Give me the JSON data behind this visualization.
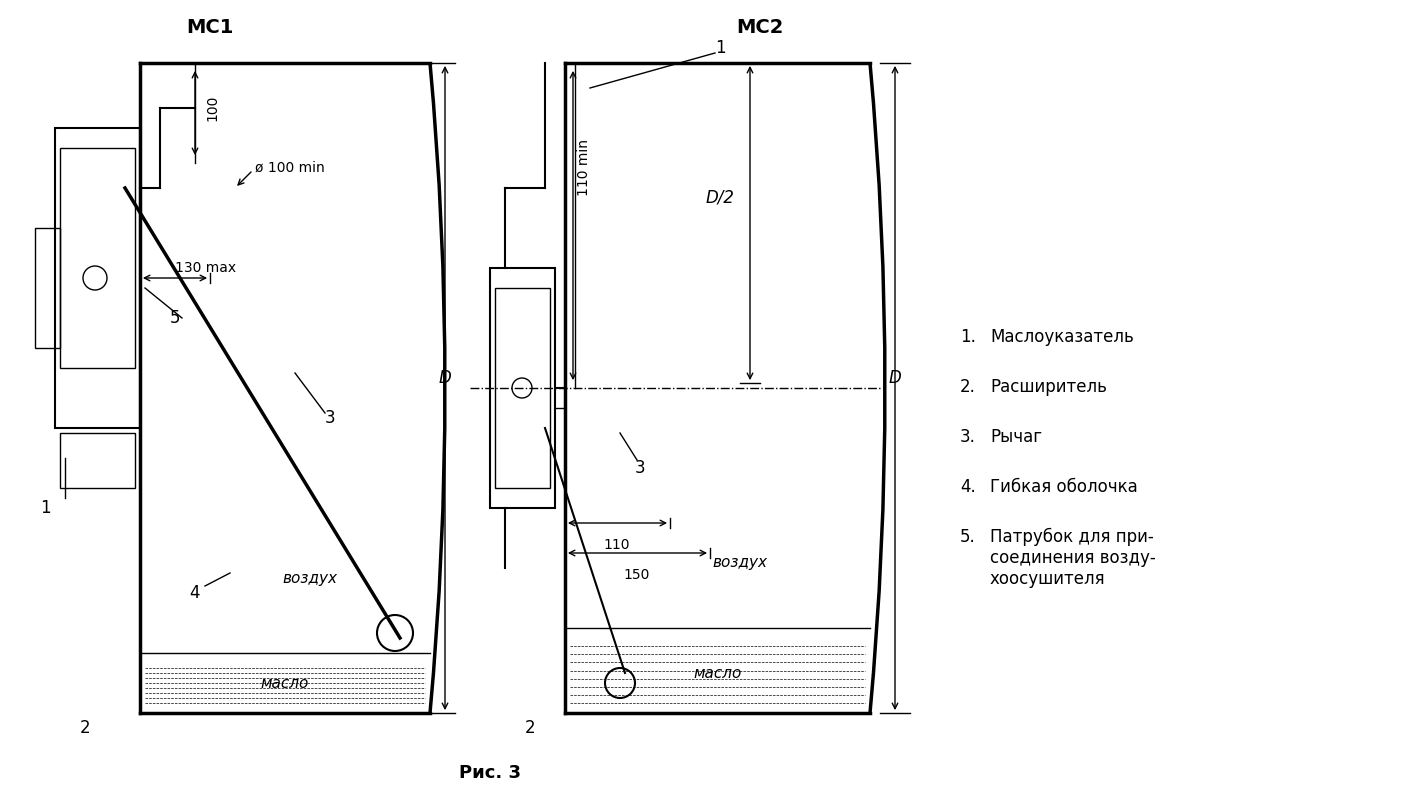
{
  "title_mc1": "МС1",
  "title_mc2": "МС2",
  "caption": "Рис. 3",
  "legend": [
    "Маслоуказатель",
    "Расширитель",
    "Рычаг",
    "Гибкая оболочка",
    "Патрубок для при-\nсоединения возду-\nхоосушителя"
  ],
  "bg_color": "#ffffff",
  "line_color": "#000000"
}
